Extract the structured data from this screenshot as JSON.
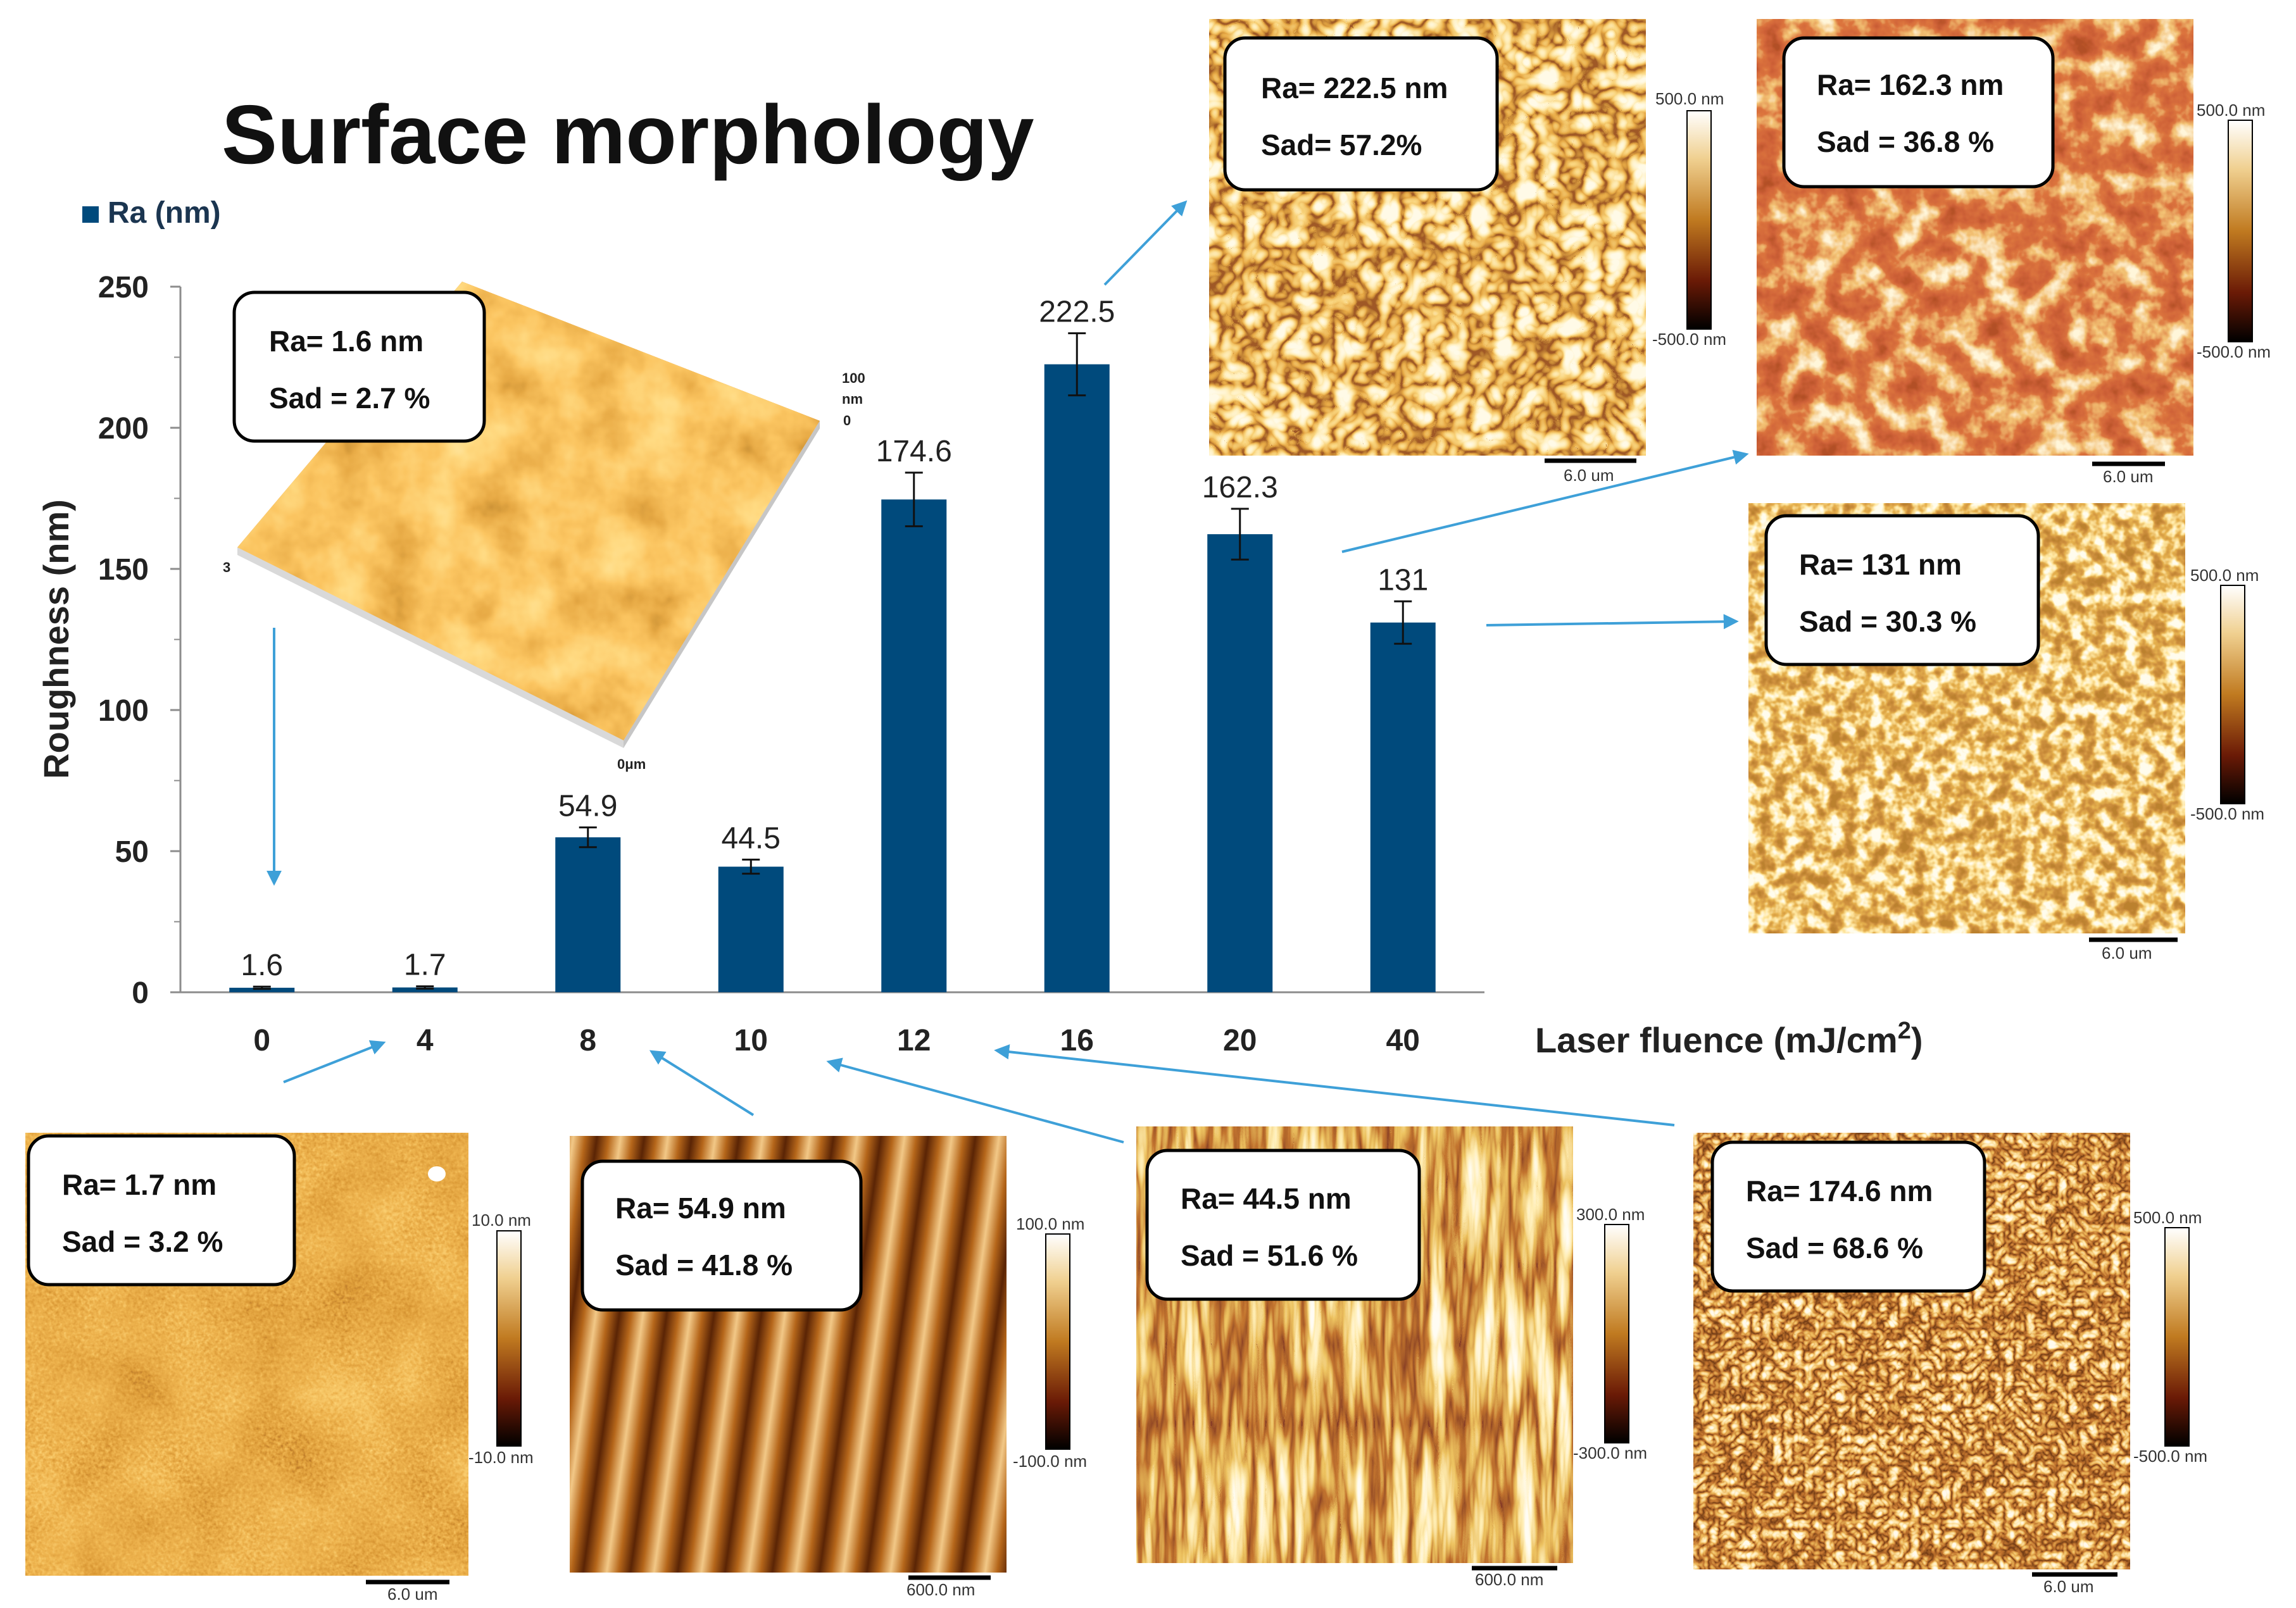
{
  "title": "Surface morphology",
  "chart_data": {
    "type": "bar",
    "categories": [
      "0",
      "4",
      "8",
      "10",
      "12",
      "16",
      "20",
      "40"
    ],
    "series": [
      {
        "name": "Ra (nm)",
        "values": [
          1.6,
          1.7,
          54.9,
          44.5,
          174.6,
          222.5,
          162.3,
          131
        ],
        "errors": [
          0.4,
          0.4,
          3.5,
          2.5,
          9.5,
          11.0,
          9.0,
          7.5
        ],
        "value_labels": [
          "1.6",
          "1.7",
          "54.9",
          "44.5",
          "174.6",
          "222.5",
          "162.3",
          "131"
        ],
        "color": "#004a7c"
      }
    ],
    "xlabel": "Laser fluence (mJ/cm",
    "xlabel_sup": "2",
    "xlabel_close": ")",
    "ylabel": "Roughness (nm)",
    "ylim": [
      0,
      250
    ],
    "yticks": [
      0,
      50,
      100,
      150,
      200,
      250
    ],
    "grid": false,
    "legend": "top-left"
  },
  "afm_images": [
    {
      "fluence": "0",
      "ra": "Ra= 1.6 nm",
      "sad": "Sad = 2.7 %",
      "scale_top": "100",
      "scale_mid": "nm",
      "scale_bottom": "0",
      "corner_label": "3",
      "axis_label": "0μm",
      "palette": "orange"
    },
    {
      "fluence": "4",
      "ra": "Ra= 1.7 nm",
      "sad": "Sad = 3.2 %",
      "scale_max": "10.0 nm",
      "scale_min": "-10.0 nm",
      "scalebar": "6.0 um",
      "palette": "speckle"
    },
    {
      "fluence": "8",
      "ra": "Ra= 54.9 nm",
      "sad": "Sad = 41.8 %",
      "scale_max": "100.0 nm",
      "scale_min": "-100.0 nm",
      "scalebar": "600.0 nm",
      "palette": "stripes"
    },
    {
      "fluence": "10",
      "ra": "Ra= 44.5 nm",
      "sad": "Sad = 51.6  %",
      "scale_max": "300.0 nm",
      "scale_min": "-300.0 nm",
      "scalebar": "600.0 nm",
      "palette": "ridges"
    },
    {
      "fluence": "12",
      "ra": "Ra= 174.6 nm",
      "sad": "Sad = 68.6 %",
      "scale_max": "500.0 nm",
      "scale_min": "-500.0 nm",
      "scalebar": "6.0 um",
      "palette": "network"
    },
    {
      "fluence": "16",
      "ra": "Ra= 222.5 nm",
      "sad": "Sad= 57.2%",
      "scale_max": "500.0 nm",
      "scale_min": "-500.0 nm",
      "scalebar": "6.0 um",
      "palette": "mesh"
    },
    {
      "fluence": "20",
      "ra": "Ra= 162.3 nm",
      "sad": "Sad = 36.8 %",
      "scale_max": "500.0 nm",
      "scale_min": "-500.0 nm",
      "scalebar": "6.0 um",
      "palette": "red"
    },
    {
      "fluence": "40",
      "ra": "Ra= 131 nm",
      "sad": "Sad = 30.3 %",
      "scale_max": "500.0 nm",
      "scale_min": "-500.0 nm",
      "scalebar": "6.0 um",
      "palette": "clusters"
    }
  ],
  "colors": {
    "bar": "#004a7c",
    "arrow": "#3ea0d8",
    "axis": "#8c8c8c",
    "text": "#222222"
  }
}
